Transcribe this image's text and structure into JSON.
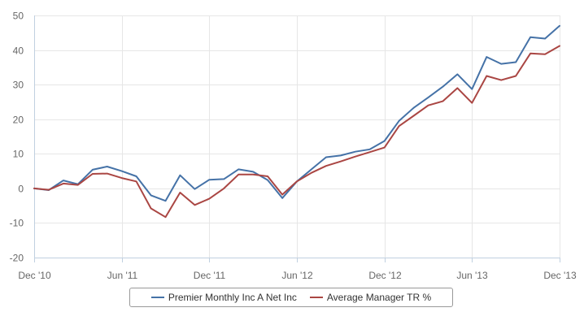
{
  "chart_data": {
    "type": "line",
    "x": [
      "2010-12",
      "2011-01",
      "2011-02",
      "2011-03",
      "2011-04",
      "2011-05",
      "2011-06",
      "2011-07",
      "2011-08",
      "2011-09",
      "2011-10",
      "2011-11",
      "2011-12",
      "2012-01",
      "2012-02",
      "2012-03",
      "2012-04",
      "2012-05",
      "2012-06",
      "2012-07",
      "2012-08",
      "2012-09",
      "2012-10",
      "2012-11",
      "2012-12",
      "2013-01",
      "2013-02",
      "2013-03",
      "2013-04",
      "2013-05",
      "2013-06",
      "2013-07",
      "2013-08",
      "2013-09",
      "2013-10",
      "2013-11",
      "2013-12"
    ],
    "x_tick_labels": [
      {
        "x": "2010-12",
        "label": "Dec '10"
      },
      {
        "x": "2011-06",
        "label": "Jun '11"
      },
      {
        "x": "2011-12",
        "label": "Dec '11"
      },
      {
        "x": "2012-06",
        "label": "Jun '12"
      },
      {
        "x": "2012-12",
        "label": "Dec '12"
      },
      {
        "x": "2013-06",
        "label": "Jun '13"
      },
      {
        "x": "2013-12",
        "label": "Dec '13"
      }
    ],
    "y_ticks": [
      -20,
      -10,
      0,
      10,
      20,
      30,
      40,
      50
    ],
    "ylim": [
      -20,
      50
    ],
    "grid": true,
    "legend_position": "bottom",
    "series": [
      {
        "name": "Premier Monthly Inc A Net Inc",
        "color": "#4572a7",
        "values": [
          0,
          -0.5,
          2.3,
          1.2,
          5.4,
          6.3,
          5,
          3.5,
          -2,
          -3.6,
          3.8,
          -0.2,
          2.5,
          2.7,
          5.5,
          4.8,
          2.4,
          -2.8,
          2,
          5.5,
          9,
          9.5,
          10.6,
          11.3,
          13.7,
          19.5,
          23.3,
          26.3,
          29.4,
          33,
          28.7,
          38,
          36,
          36.5,
          43.7,
          43.3,
          47
        ]
      },
      {
        "name": "Average Manager TR %",
        "color": "#aa4643",
        "values": [
          0,
          -0.4,
          1.4,
          1,
          4.2,
          4.3,
          3,
          2,
          -5.8,
          -8.3,
          -1.2,
          -4.8,
          -3,
          0,
          4,
          4,
          3.5,
          -1.8,
          2,
          4.5,
          6.5,
          7.8,
          9.2,
          10.5,
          11.8,
          18,
          21,
          24,
          25.2,
          29,
          24.7,
          32.5,
          31.3,
          32.5,
          39,
          38.8,
          41.2
        ]
      }
    ]
  }
}
